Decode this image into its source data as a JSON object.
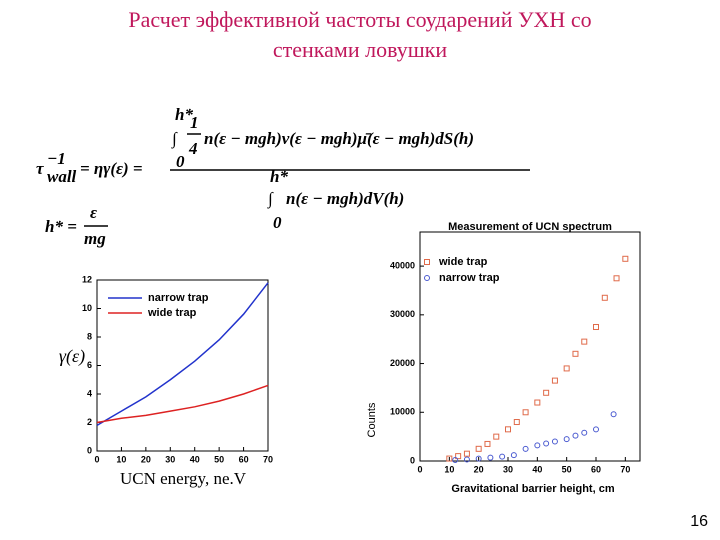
{
  "title_lines": [
    "Расчет эффективной частоты соударений УХН со",
    "стенками ловушки"
  ],
  "formula_tau": {
    "lhs": "τ",
    "lhs_sup": "−1",
    "lhs_sub": "wall",
    "eq": "= ηγ(ε) =",
    "integral": "∫",
    "upper": "h*",
    "lower": "0",
    "frac_num": "1",
    "frac_den": "4",
    "numerator": "n(ε − mgh)v(ε − mgh)μ̄(ε − mgh)dS(h)",
    "denominator": "n(ε − mgh)dV(h)"
  },
  "formula_h": {
    "lhs": "h* =",
    "num": "ε",
    "den": "mg"
  },
  "page_number": "16",
  "chart_data": [
    {
      "type": "line",
      "y_label": "γ(ε)",
      "x_label": "UCN energy, ne.V",
      "x": [
        0,
        10,
        20,
        30,
        40,
        50,
        60,
        70
      ],
      "series": [
        {
          "name": "narrow trap",
          "color": "#2233cc",
          "values": [
            1.8,
            2.8,
            3.8,
            5.0,
            6.3,
            7.8,
            9.6,
            11.8
          ]
        },
        {
          "name": "wide trap",
          "color": "#dd2222",
          "values": [
            2.0,
            2.3,
            2.5,
            2.8,
            3.1,
            3.5,
            4.0,
            4.6
          ]
        }
      ],
      "xlim": [
        0,
        70
      ],
      "xticks": [
        0,
        10,
        20,
        30,
        40,
        50,
        60,
        70
      ],
      "ylim": [
        0,
        12
      ],
      "yticks": [
        0,
        2,
        4,
        6,
        8,
        10,
        12
      ]
    },
    {
      "type": "scatter",
      "title": "Measurement of UCN spectrum",
      "y_label": "Counts",
      "x_label": "Gravitational barrier height, cm",
      "series": [
        {
          "name": "wide trap",
          "color": "#e06a4a",
          "marker": "square",
          "x": [
            10,
            13,
            16,
            20,
            23,
            26,
            30,
            33,
            36,
            40,
            43,
            46,
            50,
            53,
            56,
            60,
            63,
            67,
            70
          ],
          "values": [
            500,
            1000,
            1500,
            2500,
            3500,
            5000,
            6500,
            8000,
            10000,
            12000,
            14000,
            16500,
            19000,
            22000,
            24500,
            27500,
            33500,
            37500,
            41500
          ]
        },
        {
          "name": "narrow trap",
          "color": "#4a5ad0",
          "marker": "circle",
          "x": [
            12,
            16,
            20,
            24,
            28,
            32,
            36,
            40,
            43,
            46,
            50,
            53,
            56,
            60,
            66
          ],
          "values": [
            200,
            300,
            500,
            700,
            900,
            1200,
            2500,
            3200,
            3600,
            4000,
            4500,
            5200,
            5800,
            6500,
            9600
          ]
        }
      ],
      "xlim": [
        0,
        75
      ],
      "xticks": [
        0,
        10,
        20,
        30,
        40,
        50,
        60,
        70
      ],
      "ylim": [
        0,
        47000
      ],
      "yticks": [
        0,
        10000,
        20000,
        30000,
        40000
      ]
    }
  ]
}
